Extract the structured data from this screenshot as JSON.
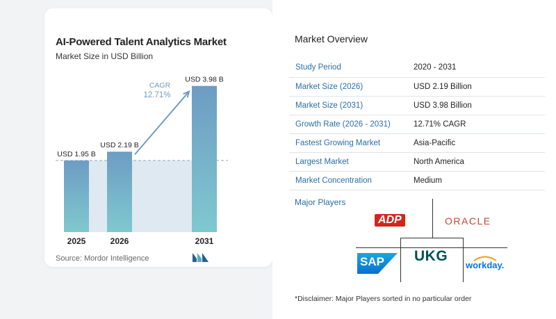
{
  "chart_data": {
    "type": "bar",
    "title": "AI-Powered Talent Analytics Market",
    "subtitle": "Market Size in USD Billion",
    "categories": [
      "2025",
      "2026",
      "2031"
    ],
    "values": [
      1.95,
      2.19,
      3.98
    ],
    "data_labels": [
      "USD 1.95 B",
      "USD 2.19 B",
      "USD 3.98 B"
    ],
    "cagr_label": "CAGR",
    "cagr_value": "12.71%",
    "ylim": [
      0,
      4.2
    ],
    "colors": {
      "bar_top": "#6d9cc4",
      "bar_bottom": "#7fc9cf",
      "shade": "#dfe9f2",
      "arrow": "#6d9cc4",
      "dashed": "#9aa5b1"
    }
  },
  "source": "Source: Mordor Intelligence",
  "overview": {
    "title": "Market Overview",
    "rows": [
      {
        "key": "Study Period",
        "value": "2020 - 2031"
      },
      {
        "key": "Market Size (2026)",
        "value": "USD 2.19 Billion"
      },
      {
        "key": "Market Size (2031)",
        "value": "USD 3.98 Billion"
      },
      {
        "key": "Growth Rate (2026 - 2031)",
        "value": "12.71% CAGR"
      },
      {
        "key": "Fastest Growing Market",
        "value": "Asia-Pacific"
      },
      {
        "key": "Largest Market",
        "value": "North America"
      },
      {
        "key": "Market Concentration",
        "value": "Medium"
      }
    ]
  },
  "players": {
    "title": "Major Players",
    "logos": {
      "adp": "ADP",
      "oracle": "ORACLE",
      "sap": "SAP",
      "ukg": "UKG",
      "workday": "workday."
    },
    "colors": {
      "adp": "#d0271d",
      "oracle": "#c74634",
      "sap": "#0a6ed1",
      "ukg": "#005151",
      "workday": "#0875e1",
      "workday_accent": "#f5a623"
    }
  },
  "disclaimer": "*Disclaimer: Major Players sorted in no particular order"
}
